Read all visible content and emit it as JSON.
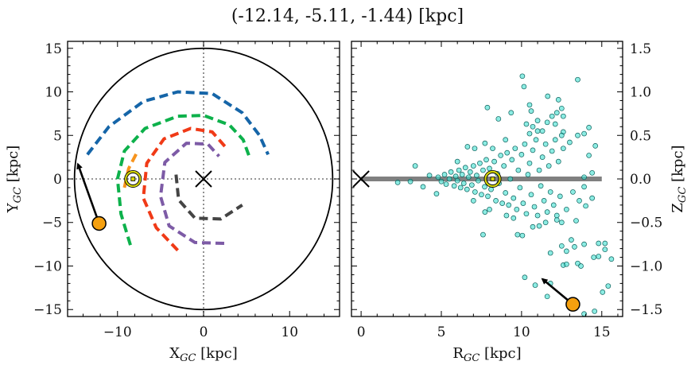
{
  "chart_data": [
    {
      "type": "line",
      "title": "(-12.14, -5.11, -1.44) [kpc]",
      "xlabel": {
        "main": "X",
        "sub": "GC",
        "rest": " [kpc]"
      },
      "ylabel": {
        "main": "Y",
        "sub": "GC",
        "rest": " [kpc]"
      },
      "xlim": [
        -15.8,
        15.8
      ],
      "ylim": [
        -15.8,
        15.8
      ],
      "xticks": [
        -10,
        0,
        10
      ],
      "yticks": [
        -15,
        -10,
        -5,
        0,
        5,
        10,
        15
      ],
      "xtick_labels": [
        "−10",
        "0",
        "10"
      ],
      "ytick_labels": [
        "−15",
        "−10",
        "−5",
        "0",
        "5",
        "10",
        "15"
      ],
      "grid": false,
      "boundary_circle_radius": 15,
      "arms": [
        {
          "color": "#1565a8",
          "points": [
            [
              -13.5,
              2.8
            ],
            [
              -11,
              6
            ],
            [
              -7,
              8.9
            ],
            [
              -3,
              10
            ],
            [
              1,
              9.8
            ],
            [
              4.5,
              7.6
            ],
            [
              6.5,
              5
            ],
            [
              7.5,
              2.8
            ]
          ]
        },
        {
          "color": "#0db14b",
          "points": [
            [
              -8.5,
              -7.6
            ],
            [
              -9.6,
              -4
            ],
            [
              -10,
              0
            ],
            [
              -9.2,
              3.2
            ],
            [
              -6.8,
              5.8
            ],
            [
              -3,
              7.2
            ],
            [
              0,
              7.3
            ],
            [
              3,
              6.2
            ],
            [
              4.6,
              4.5
            ],
            [
              5.3,
              2.6
            ]
          ]
        },
        {
          "color": "#f7941d",
          "points": [
            [
              -9.2,
              -1
            ],
            [
              -8.7,
              1.2
            ],
            [
              -7.6,
              3.3
            ]
          ]
        },
        {
          "color": "#f03a17",
          "points": [
            [
              -3,
              -8.2
            ],
            [
              -5.5,
              -5.6
            ],
            [
              -7,
              -2.2
            ],
            [
              -6.6,
              1.8
            ],
            [
              -4.6,
              4.6
            ],
            [
              -1.5,
              5.8
            ],
            [
              1,
              5.4
            ],
            [
              2.6,
              3.6
            ]
          ]
        },
        {
          "color": "#7d5ba6",
          "points": [
            [
              2.4,
              -7.4
            ],
            [
              -1,
              -7.3
            ],
            [
              -4,
              -5.4
            ],
            [
              -5,
              -2
            ],
            [
              -4.5,
              1.9
            ],
            [
              -2,
              4.1
            ],
            [
              0.5,
              4
            ],
            [
              1.8,
              2.6
            ]
          ]
        },
        {
          "color": "#444444",
          "points": [
            [
              -3.2,
              0.5
            ],
            [
              -2.9,
              -2.4
            ],
            [
              -1,
              -4.5
            ],
            [
              2,
              -4.6
            ],
            [
              4.5,
              -3
            ]
          ]
        }
      ],
      "galactic_center": [
        0,
        0
      ],
      "sun": [
        -8.2,
        0
      ],
      "object": [
        -12.14,
        -5.11
      ],
      "arrow_to": [
        -14.6,
        1.7
      ],
      "object_color": "#f5a00f",
      "sun_color": "#d4d400"
    },
    {
      "type": "scatter",
      "xlabel": {
        "main": "R",
        "sub": "GC",
        "rest": " [kpc]"
      },
      "ylabel": {
        "main": "Z",
        "sub": "GC",
        "rest": " [kpc]"
      },
      "xlim": [
        -0.6,
        16.3
      ],
      "ylim": [
        -1.58,
        1.58
      ],
      "xticks": [
        0,
        5,
        10,
        15
      ],
      "yticks": [
        -1.5,
        -1.0,
        -0.5,
        0.0,
        0.5,
        1.0,
        1.5
      ],
      "xtick_labels": [
        "0",
        "5",
        "10",
        "15"
      ],
      "ytick_labels": [
        "−1.5",
        "−1.0",
        "−0.5",
        "0.0",
        "0.5",
        "1.0",
        "1.5"
      ],
      "grid": false,
      "disk_line": {
        "from": 0,
        "to": 15,
        "z": 0,
        "color": "#808080"
      },
      "point_color": "#40e0d0",
      "galactic_center": [
        0,
        0
      ],
      "sun": [
        8.2,
        0
      ],
      "object": [
        13.2,
        -1.44
      ],
      "arrow_to": [
        11.3,
        -1.15
      ],
      "points": [
        [
          10.05,
          1.18
        ],
        [
          10.15,
          1.06
        ],
        [
          13.5,
          1.14
        ],
        [
          11.63,
          0.95
        ],
        [
          12.3,
          0.91
        ],
        [
          7.87,
          0.82
        ],
        [
          10.5,
          0.85
        ],
        [
          10.6,
          0.78
        ],
        [
          9.35,
          0.76
        ],
        [
          8.56,
          0.69
        ],
        [
          12.2,
          0.76
        ],
        [
          12.5,
          0.81
        ],
        [
          12.6,
          0.72
        ],
        [
          11.0,
          0.67
        ],
        [
          11.6,
          0.65
        ],
        [
          11.9,
          0.72
        ],
        [
          10.3,
          0.63
        ],
        [
          10.7,
          0.6
        ],
        [
          12.1,
          0.63
        ],
        [
          14.2,
          0.59
        ],
        [
          13.9,
          0.52
        ],
        [
          13.5,
          0.5
        ],
        [
          12.6,
          0.54
        ],
        [
          11.3,
          0.55
        ],
        [
          14.6,
          0.38
        ],
        [
          14.2,
          0.27
        ],
        [
          14.4,
          0.07
        ],
        [
          13.9,
          0.02
        ],
        [
          13.9,
          -0.09
        ],
        [
          14.4,
          -0.22
        ],
        [
          14.0,
          -0.31
        ],
        [
          13.6,
          -0.25
        ],
        [
          13.4,
          -0.48
        ],
        [
          12.5,
          -0.5
        ],
        [
          12.2,
          -0.47
        ],
        [
          10.7,
          -0.55
        ],
        [
          11.1,
          -0.54
        ],
        [
          7.6,
          -0.64
        ],
        [
          9.75,
          -0.64
        ],
        [
          10.05,
          -0.65
        ],
        [
          12.5,
          -0.77
        ],
        [
          13.1,
          -0.7
        ],
        [
          12.8,
          -0.83
        ],
        [
          13.3,
          -0.78
        ],
        [
          13.9,
          -0.75
        ],
        [
          14.8,
          -0.74
        ],
        [
          15.2,
          -0.74
        ],
        [
          15.2,
          -0.81
        ],
        [
          15.6,
          -0.92
        ],
        [
          14.5,
          -0.9
        ],
        [
          14.8,
          -0.89
        ],
        [
          11.8,
          -0.85
        ],
        [
          12.6,
          -0.99
        ],
        [
          12.8,
          -0.98
        ],
        [
          13.5,
          -0.97
        ],
        [
          13.7,
          -1.0
        ],
        [
          10.2,
          -1.13
        ],
        [
          10.85,
          -1.22
        ],
        [
          11.8,
          -1.2
        ],
        [
          11.6,
          -1.35
        ],
        [
          15.05,
          -1.3
        ],
        [
          15.4,
          -1.23
        ],
        [
          14.55,
          -1.52
        ],
        [
          13.9,
          -1.55
        ],
        [
          2.28,
          -0.04
        ],
        [
          3.07,
          -0.03
        ],
        [
          3.37,
          0.15
        ],
        [
          3.86,
          -0.09
        ],
        [
          4.7,
          -0.17
        ],
        [
          4.26,
          0.04
        ],
        [
          6.63,
          0.37
        ],
        [
          7.08,
          0.35
        ],
        [
          7.72,
          0.41
        ],
        [
          9.06,
          -0.42
        ],
        [
          7.72,
          -0.38
        ],
        [
          4.8,
          0.02
        ],
        [
          5.0,
          -0.03
        ],
        [
          5.2,
          0.05
        ],
        [
          5.3,
          -0.06
        ],
        [
          5.5,
          0.0
        ],
        [
          5.6,
          0.08
        ],
        [
          5.8,
          -0.08
        ],
        [
          5.9,
          0.03
        ],
        [
          6.0,
          -0.02
        ],
        [
          6.1,
          0.1
        ],
        [
          6.2,
          -0.1
        ],
        [
          6.3,
          0.05
        ],
        [
          6.4,
          -0.05
        ],
        [
          6.5,
          0.13
        ],
        [
          6.6,
          -0.12
        ],
        [
          6.7,
          0.02
        ],
        [
          6.8,
          0.08
        ],
        [
          6.9,
          -0.07
        ],
        [
          7.0,
          0.15
        ],
        [
          7.1,
          -0.15
        ],
        [
          7.2,
          0.04
        ],
        [
          7.3,
          -0.02
        ],
        [
          7.4,
          0.18
        ],
        [
          7.5,
          -0.18
        ],
        [
          7.6,
          0.1
        ],
        [
          7.7,
          -0.09
        ],
        [
          7.8,
          0.22
        ],
        [
          7.9,
          -0.2
        ],
        [
          8.0,
          0.12
        ],
        [
          8.1,
          -0.12
        ],
        [
          8.3,
          0.2
        ],
        [
          8.4,
          -0.25
        ],
        [
          8.5,
          0.06
        ],
        [
          8.6,
          -0.05
        ],
        [
          8.7,
          0.27
        ],
        [
          8.8,
          -0.28
        ],
        [
          8.9,
          0.15
        ],
        [
          9.0,
          -0.16
        ],
        [
          9.1,
          0.3
        ],
        [
          9.2,
          -0.3
        ],
        [
          9.3,
          0.0
        ],
        [
          9.4,
          0.22
        ],
        [
          9.5,
          -0.22
        ],
        [
          9.6,
          0.35
        ],
        [
          9.7,
          -0.35
        ],
        [
          9.8,
          0.1
        ],
        [
          9.9,
          -0.1
        ],
        [
          10.0,
          0.28
        ],
        [
          10.1,
          -0.28
        ],
        [
          10.2,
          0.4
        ],
        [
          10.3,
          -0.4
        ],
        [
          10.4,
          0.05
        ],
        [
          10.5,
          0.18
        ],
        [
          10.6,
          -0.18
        ],
        [
          10.7,
          0.33
        ],
        [
          10.8,
          -0.32
        ],
        [
          10.9,
          0.45
        ],
        [
          11.0,
          -0.42
        ],
        [
          11.1,
          0.1
        ],
        [
          11.2,
          -0.08
        ],
        [
          11.3,
          0.25
        ],
        [
          11.4,
          -0.25
        ],
        [
          11.5,
          0.4
        ],
        [
          11.6,
          -0.38
        ],
        [
          11.7,
          0.15
        ],
        [
          11.8,
          -0.15
        ],
        [
          11.9,
          0.32
        ],
        [
          12.0,
          -0.3
        ],
        [
          12.1,
          0.45
        ],
        [
          12.2,
          -0.42
        ],
        [
          12.3,
          0.2
        ],
        [
          12.4,
          -0.2
        ],
        [
          12.6,
          0.35
        ],
        [
          12.8,
          -0.35
        ],
        [
          13.0,
          0.42
        ],
        [
          13.2,
          -0.15
        ],
        [
          6.0,
          0.2
        ],
        [
          7.0,
          -0.25
        ],
        [
          8.2,
          0.35
        ],
        [
          8.0,
          -0.35
        ],
        [
          9.0,
          0.45
        ],
        [
          9.5,
          -0.45
        ],
        [
          10.5,
          0.52
        ],
        [
          11.0,
          0.55
        ],
        [
          11.5,
          -0.5
        ],
        [
          12.5,
          0.5
        ]
      ]
    }
  ]
}
